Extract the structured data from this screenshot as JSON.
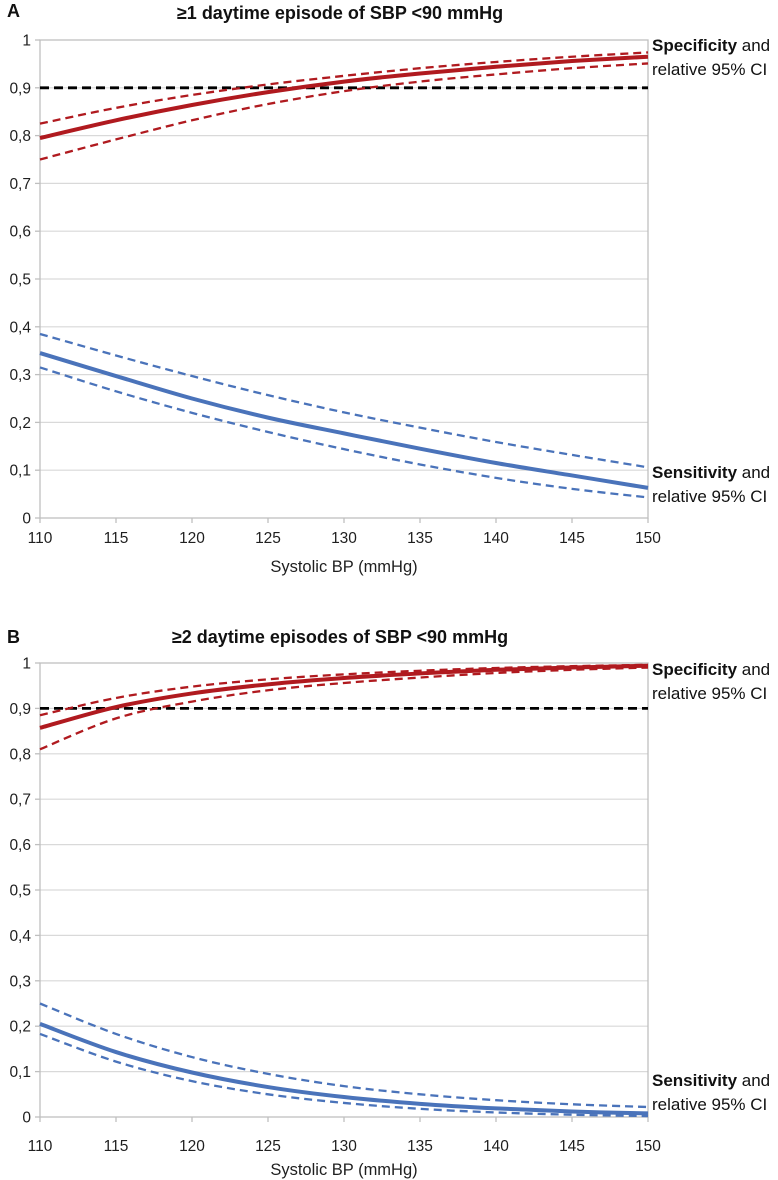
{
  "chart_data": [
    {
      "panel_letter": "A",
      "type": "line",
      "title": "≥1 daytime episode of SBP <90 mmHg",
      "xlabel": "Systolic BP (mmHg)",
      "x": [
        110,
        115,
        120,
        125,
        130,
        135,
        140,
        145,
        150
      ],
      "xlim": [
        110,
        150
      ],
      "ylim": [
        0,
        1
      ],
      "x_ticks": [
        "110",
        "115",
        "120",
        "125",
        "130",
        "135",
        "140",
        "145",
        "150"
      ],
      "y_ticks": [
        "0",
        "0,1",
        "0,2",
        "0,3",
        "0,4",
        "0,5",
        "0,6",
        "0,7",
        "0,8",
        "0,9",
        "1"
      ],
      "grid": "horizontal",
      "colors": {
        "gridline": "#d9d9d9",
        "axis": "#bfbfbf"
      },
      "reference_line": {
        "y": 0.9,
        "style": "dashed",
        "color": "#000000"
      },
      "series": [
        {
          "name": "Specificity",
          "style": "solid",
          "color": "#b01a1f",
          "values": [
            0.795,
            0.832,
            0.864,
            0.891,
            0.913,
            0.93,
            0.944,
            0.956,
            0.965
          ]
        },
        {
          "name": "Specificity upper 95% CI",
          "style": "dashed",
          "color": "#b01a1f",
          "values": [
            0.825,
            0.858,
            0.885,
            0.907,
            0.925,
            0.941,
            0.954,
            0.965,
            0.974
          ]
        },
        {
          "name": "Specificity lower 95% CI",
          "style": "dashed",
          "color": "#b01a1f",
          "values": [
            0.75,
            0.792,
            0.832,
            0.866,
            0.893,
            0.913,
            0.928,
            0.941,
            0.951
          ]
        },
        {
          "name": "Sensitivity",
          "style": "solid",
          "color": "#4a73ba",
          "values": [
            0.345,
            0.297,
            0.25,
            0.21,
            0.177,
            0.145,
            0.115,
            0.089,
            0.063
          ]
        },
        {
          "name": "Sensitivity upper 95% CI",
          "style": "dashed",
          "color": "#4a73ba",
          "values": [
            0.385,
            0.34,
            0.297,
            0.257,
            0.221,
            0.189,
            0.159,
            0.132,
            0.106
          ]
        },
        {
          "name": "Sensitivity lower 95% CI",
          "style": "dashed",
          "color": "#4a73ba",
          "values": [
            0.315,
            0.265,
            0.22,
            0.18,
            0.144,
            0.112,
            0.084,
            0.061,
            0.043
          ]
        }
      ],
      "legend_right": {
        "specificity": {
          "bold": "Specificity",
          "rest": " and",
          "line2": "relative 95% CI"
        },
        "sensitivity": {
          "bold": "Sensitivity",
          "rest": " and",
          "line2": "relative 95% CI"
        }
      }
    },
    {
      "panel_letter": "B",
      "type": "line",
      "title": "≥2 daytime episodes of SBP <90 mmHg",
      "xlabel": "Systolic BP (mmHg)",
      "x": [
        110,
        115,
        120,
        125,
        130,
        135,
        140,
        145,
        150
      ],
      "xlim": [
        110,
        150
      ],
      "ylim": [
        0,
        1
      ],
      "x_ticks": [
        "110",
        "115",
        "120",
        "125",
        "130",
        "135",
        "140",
        "145",
        "150"
      ],
      "y_ticks": [
        "0",
        "0,1",
        "0,2",
        "0,3",
        "0,4",
        "0,5",
        "0,6",
        "0,7",
        "0,8",
        "0,9",
        "1"
      ],
      "grid": "horizontal",
      "colors": {
        "gridline": "#d9d9d9",
        "axis": "#bfbfbf"
      },
      "reference_line": {
        "y": 0.9,
        "style": "dashed",
        "color": "#000000"
      },
      "series": [
        {
          "name": "Specificity",
          "style": "solid",
          "color": "#b01a1f",
          "values": [
            0.857,
            0.903,
            0.933,
            0.953,
            0.967,
            0.977,
            0.985,
            0.99,
            0.994
          ]
        },
        {
          "name": "Specificity upper 95% CI",
          "style": "dashed",
          "color": "#b01a1f",
          "values": [
            0.885,
            0.923,
            0.948,
            0.964,
            0.975,
            0.983,
            0.989,
            0.993,
            0.996
          ]
        },
        {
          "name": "Specificity lower 95% CI",
          "style": "dashed",
          "color": "#b01a1f",
          "values": [
            0.81,
            0.878,
            0.915,
            0.94,
            0.956,
            0.968,
            0.978,
            0.985,
            0.99
          ]
        },
        {
          "name": "Sensitivity",
          "style": "solid",
          "color": "#4a73ba",
          "values": [
            0.205,
            0.143,
            0.098,
            0.066,
            0.044,
            0.029,
            0.019,
            0.012,
            0.008
          ]
        },
        {
          "name": "Sensitivity upper 95% CI",
          "style": "dashed",
          "color": "#4a73ba",
          "values": [
            0.25,
            0.183,
            0.132,
            0.095,
            0.068,
            0.05,
            0.037,
            0.028,
            0.022
          ]
        },
        {
          "name": "Sensitivity lower 95% CI",
          "style": "dashed",
          "color": "#4a73ba",
          "values": [
            0.183,
            0.122,
            0.079,
            0.05,
            0.031,
            0.018,
            0.01,
            0.005,
            0.002
          ]
        }
      ],
      "legend_right": {
        "specificity": {
          "bold": "Specificity",
          "rest": " and",
          "line2": "relative 95% CI"
        },
        "sensitivity": {
          "bold": "Sensitivity",
          "rest": " and",
          "line2": "relative 95% CI"
        }
      }
    }
  ]
}
